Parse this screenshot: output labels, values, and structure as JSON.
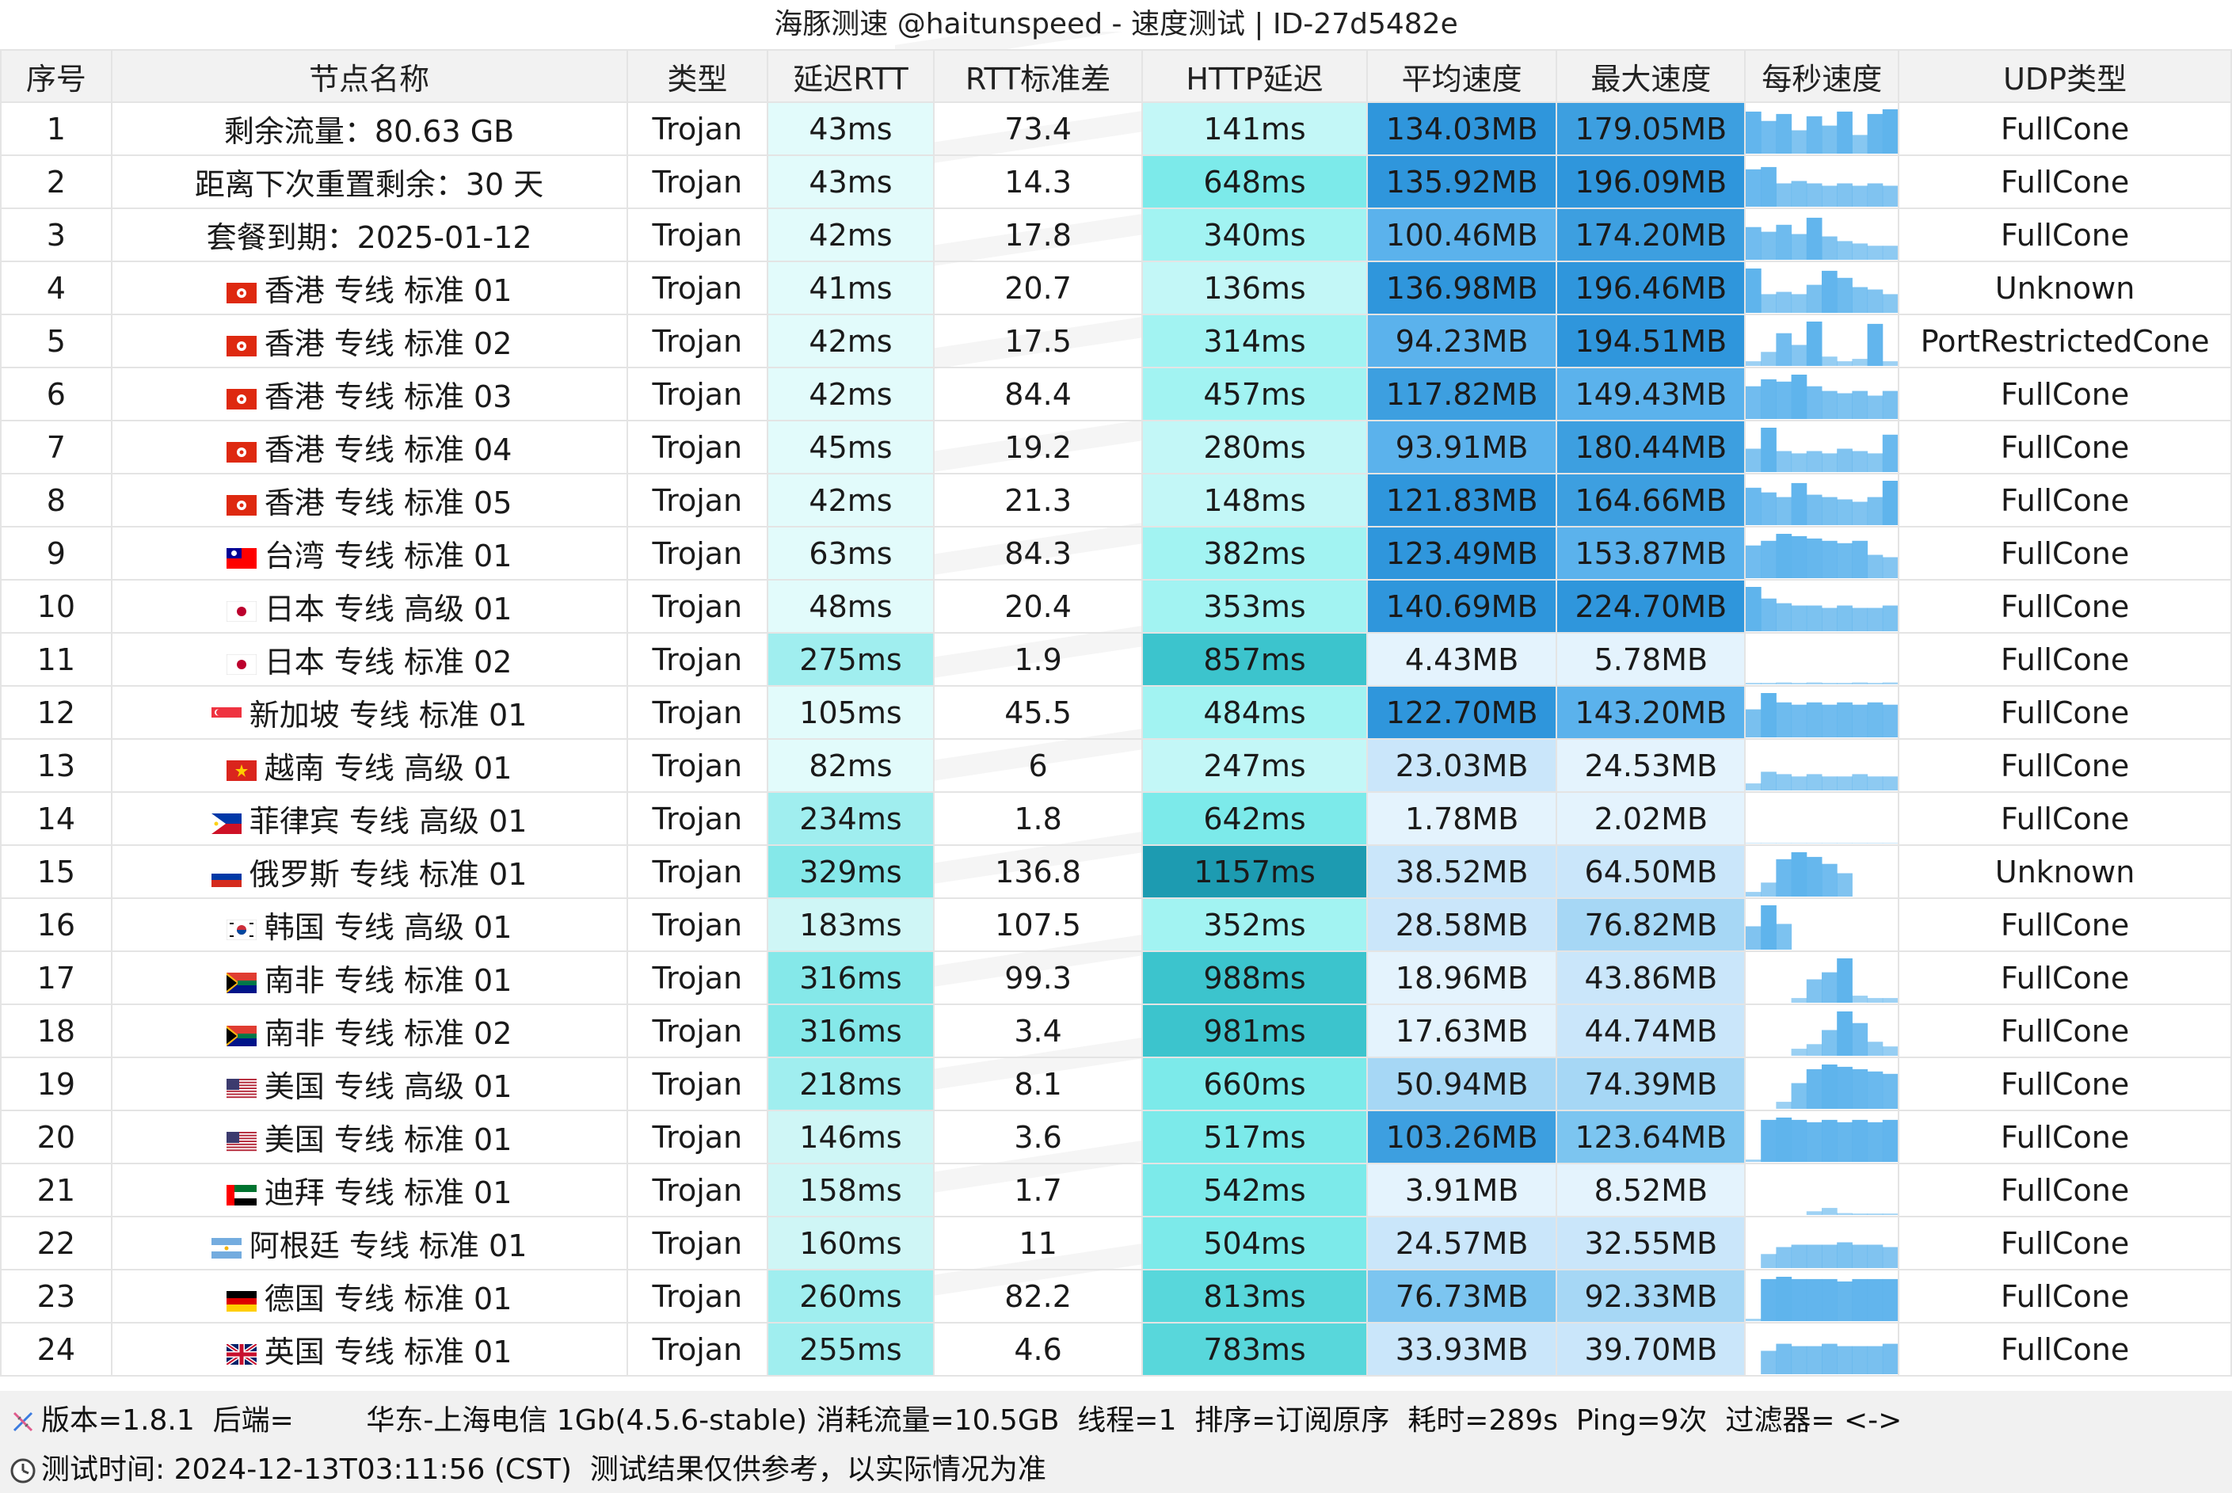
{
  "title": "海豚测速 @haitunspeed - 速度测试 | ID-27d5482e",
  "columns": [
    "序号",
    "节点名称",
    "类型",
    "延迟RTT",
    "RTT标准差",
    "HTTP延迟",
    "平均速度",
    "最大速度",
    "每秒速度",
    "UDP类型"
  ],
  "rows": [
    {
      "idx": "1",
      "flag": "",
      "name": "剩余流量：80.63 GB",
      "type": "Trojan",
      "rtt": "43ms",
      "std": "73.4",
      "http": "141ms",
      "avg": "134.03MB",
      "max": "179.05MB",
      "udp": "FullCone",
      "spark": [
        0.9,
        0.7,
        0.85,
        0.5,
        0.8,
        0.6,
        0.9,
        0.4,
        0.85,
        0.95
      ]
    },
    {
      "idx": "2",
      "flag": "",
      "name": "距离下次重置剩余：30 天",
      "type": "Trojan",
      "rtt": "43ms",
      "std": "14.3",
      "http": "648ms",
      "avg": "135.92MB",
      "max": "196.09MB",
      "udp": "FullCone",
      "spark": [
        0.8,
        0.85,
        0.5,
        0.55,
        0.5,
        0.45,
        0.5,
        0.45,
        0.5,
        0.45
      ]
    },
    {
      "idx": "3",
      "flag": "",
      "name": "套餐到期：2025-01-12",
      "type": "Trojan",
      "rtt": "42ms",
      "std": "17.8",
      "http": "340ms",
      "avg": "100.46MB",
      "max": "174.20MB",
      "udp": "FullCone",
      "spark": [
        0.7,
        0.6,
        0.75,
        0.55,
        0.9,
        0.5,
        0.4,
        0.35,
        0.3,
        0.3
      ]
    },
    {
      "idx": "4",
      "flag": "hk",
      "name": "香港 专线 标准 01",
      "type": "Trojan",
      "rtt": "41ms",
      "std": "20.7",
      "http": "136ms",
      "avg": "136.98MB",
      "max": "196.46MB",
      "udp": "Unknown",
      "spark": [
        0.95,
        0.4,
        0.45,
        0.4,
        0.6,
        0.9,
        0.75,
        0.55,
        0.5,
        0.4
      ]
    },
    {
      "idx": "5",
      "flag": "hk",
      "name": "香港 专线 标准 02",
      "type": "Trojan",
      "rtt": "42ms",
      "std": "17.5",
      "http": "314ms",
      "avg": "94.23MB",
      "max": "194.51MB",
      "udp": "PortRestrictedCone",
      "spark": [
        0.1,
        0.3,
        0.7,
        0.45,
        0.95,
        0.2,
        0.1,
        0.15,
        0.9,
        0.1
      ]
    },
    {
      "idx": "6",
      "flag": "hk",
      "name": "香港 专线 标准 03",
      "type": "Trojan",
      "rtt": "42ms",
      "std": "84.4",
      "http": "457ms",
      "avg": "117.82MB",
      "max": "149.43MB",
      "udp": "FullCone",
      "spark": [
        0.7,
        0.85,
        0.8,
        0.95,
        0.7,
        0.6,
        0.55,
        0.6,
        0.5,
        0.6
      ]
    },
    {
      "idx": "7",
      "flag": "hk",
      "name": "香港 专线 标准 04",
      "type": "Trojan",
      "rtt": "45ms",
      "std": "19.2",
      "http": "280ms",
      "avg": "93.91MB",
      "max": "180.44MB",
      "udp": "FullCone",
      "spark": [
        0.5,
        0.95,
        0.45,
        0.4,
        0.45,
        0.4,
        0.5,
        0.45,
        0.4,
        0.8
      ]
    },
    {
      "idx": "8",
      "flag": "hk",
      "name": "香港 专线 标准 05",
      "type": "Trojan",
      "rtt": "42ms",
      "std": "21.3",
      "http": "148ms",
      "avg": "121.83MB",
      "max": "164.66MB",
      "udp": "FullCone",
      "spark": [
        0.8,
        0.7,
        0.6,
        0.9,
        0.65,
        0.6,
        0.55,
        0.5,
        0.6,
        0.95
      ]
    },
    {
      "idx": "9",
      "flag": "tw",
      "name": "台湾 专线 标准 01",
      "type": "Trojan",
      "rtt": "63ms",
      "std": "84.3",
      "http": "382ms",
      "avg": "123.49MB",
      "max": "153.87MB",
      "udp": "FullCone",
      "spark": [
        0.7,
        0.8,
        0.95,
        0.9,
        0.85,
        0.8,
        0.75,
        0.8,
        0.5,
        0.45
      ]
    },
    {
      "idx": "10",
      "flag": "jp",
      "name": "日本 专线 高级 01",
      "type": "Trojan",
      "rtt": "48ms",
      "std": "20.4",
      "http": "353ms",
      "avg": "140.69MB",
      "max": "224.70MB",
      "udp": "FullCone",
      "spark": [
        0.95,
        0.7,
        0.6,
        0.55,
        0.55,
        0.5,
        0.55,
        0.5,
        0.5,
        0.55
      ]
    },
    {
      "idx": "11",
      "flag": "jp",
      "name": "日本 专线 标准 02",
      "type": "Trojan",
      "rtt": "275ms",
      "std": "1.9",
      "http": "857ms",
      "avg": "4.43MB",
      "max": "5.78MB",
      "udp": "FullCone",
      "spark": [
        0.03,
        0.03,
        0.04,
        0.03,
        0.04,
        0.03,
        0.03,
        0.04,
        0.03,
        0.04
      ]
    },
    {
      "idx": "12",
      "flag": "sg",
      "name": "新加坡 专线 标准 01",
      "type": "Trojan",
      "rtt": "105ms",
      "std": "45.5",
      "http": "484ms",
      "avg": "122.70MB",
      "max": "143.20MB",
      "udp": "FullCone",
      "spark": [
        0.6,
        0.95,
        0.75,
        0.7,
        0.75,
        0.7,
        0.75,
        0.7,
        0.75,
        0.7
      ]
    },
    {
      "idx": "13",
      "flag": "vn",
      "name": "越南 专线 高级 01",
      "type": "Trojan",
      "rtt": "82ms",
      "std": "6",
      "http": "247ms",
      "avg": "23.03MB",
      "max": "24.53MB",
      "udp": "FullCone",
      "spark": [
        0.15,
        0.4,
        0.35,
        0.3,
        0.35,
        0.3,
        0.3,
        0.35,
        0.3,
        0.3
      ]
    },
    {
      "idx": "14",
      "flag": "ph",
      "name": "菲律宾 专线 高级 01",
      "type": "Trojan",
      "rtt": "234ms",
      "std": "1.8",
      "http": "642ms",
      "avg": "1.78MB",
      "max": "2.02MB",
      "udp": "FullCone",
      "spark": [
        0.01,
        0.01,
        0.01,
        0.01,
        0.01,
        0.01,
        0.01,
        0.01,
        0.01,
        0.01
      ]
    },
    {
      "idx": "15",
      "flag": "ru",
      "name": "俄罗斯 专线 标准 01",
      "type": "Trojan",
      "rtt": "329ms",
      "std": "136.8",
      "http": "1157ms",
      "avg": "38.52MB",
      "max": "64.50MB",
      "udp": "Unknown",
      "spark": [
        0.1,
        0.3,
        0.8,
        0.95,
        0.85,
        0.7,
        0.5,
        0,
        0,
        0
      ]
    },
    {
      "idx": "16",
      "flag": "kr",
      "name": "韩国 专线 高级 01",
      "type": "Trojan",
      "rtt": "183ms",
      "std": "107.5",
      "http": "352ms",
      "avg": "28.58MB",
      "max": "76.82MB",
      "udp": "FullCone",
      "spark": [
        0.5,
        0.95,
        0.55,
        0,
        0,
        0,
        0,
        0,
        0,
        0
      ]
    },
    {
      "idx": "17",
      "flag": "za",
      "name": "南非 专线 标准 01",
      "type": "Trojan",
      "rtt": "316ms",
      "std": "99.3",
      "http": "988ms",
      "avg": "18.96MB",
      "max": "43.86MB",
      "udp": "FullCone",
      "spark": [
        0,
        0,
        0,
        0.1,
        0.5,
        0.65,
        0.95,
        0.15,
        0.1,
        0.1
      ]
    },
    {
      "idx": "18",
      "flag": "za",
      "name": "南非 专线 标准 02",
      "type": "Trojan",
      "rtt": "316ms",
      "std": "3.4",
      "http": "981ms",
      "avg": "17.63MB",
      "max": "44.74MB",
      "udp": "FullCone",
      "spark": [
        0,
        0,
        0,
        0.15,
        0.25,
        0.55,
        0.95,
        0.7,
        0.3,
        0.2
      ]
    },
    {
      "idx": "19",
      "flag": "us",
      "name": "美国 专线 高级 01",
      "type": "Trojan",
      "rtt": "218ms",
      "std": "8.1",
      "http": "660ms",
      "avg": "50.94MB",
      "max": "74.39MB",
      "udp": "FullCone",
      "spark": [
        0,
        0,
        0.15,
        0.55,
        0.85,
        0.95,
        0.9,
        0.85,
        0.8,
        0.75
      ]
    },
    {
      "idx": "20",
      "flag": "us",
      "name": "美国 专线 标准 01",
      "type": "Trojan",
      "rtt": "146ms",
      "std": "3.6",
      "http": "517ms",
      "avg": "103.26MB",
      "max": "123.64MB",
      "udp": "FullCone",
      "spark": [
        0.05,
        0.9,
        0.95,
        0.9,
        0.85,
        0.9,
        0.85,
        0.9,
        0.85,
        0.9
      ]
    },
    {
      "idx": "21",
      "flag": "ae",
      "name": "迪拜 专线 标准 01",
      "type": "Trojan",
      "rtt": "158ms",
      "std": "1.7",
      "http": "542ms",
      "avg": "3.91MB",
      "max": "8.52MB",
      "udp": "FullCone",
      "spark": [
        0,
        0,
        0,
        0,
        0.08,
        0.15,
        0.04,
        0.03,
        0.03,
        0.03
      ]
    },
    {
      "idx": "22",
      "flag": "ar",
      "name": "阿根廷 专线 标准 01",
      "type": "Trojan",
      "rtt": "160ms",
      "std": "11",
      "http": "504ms",
      "avg": "24.57MB",
      "max": "32.55MB",
      "udp": "FullCone",
      "spark": [
        0,
        0.3,
        0.45,
        0.5,
        0.5,
        0.5,
        0.55,
        0.5,
        0.5,
        0.45
      ]
    },
    {
      "idx": "23",
      "flag": "de",
      "name": "德国 专线 标准 01",
      "type": "Trojan",
      "rtt": "260ms",
      "std": "82.2",
      "http": "813ms",
      "avg": "76.73MB",
      "max": "92.33MB",
      "udp": "FullCone",
      "spark": [
        0.05,
        0.9,
        0.95,
        0.9,
        0.9,
        0.9,
        0.85,
        0.9,
        0.9,
        0.9
      ]
    },
    {
      "idx": "24",
      "flag": "gb",
      "name": "英国 专线 标准 01",
      "type": "Trojan",
      "rtt": "255ms",
      "std": "4.6",
      "http": "783ms",
      "avg": "33.93MB",
      "max": "39.70MB",
      "udp": "FullCone",
      "spark": [
        0,
        0.5,
        0.65,
        0.6,
        0.6,
        0.65,
        0.6,
        0.6,
        0.6,
        0.65
      ]
    }
  ],
  "footer": {
    "line1": "版本=1.8.1  后端=        华东-上海电信 1Gb(4.5.6-stable) 消耗流量=10.5GB  线程=1  排序=订阅原序  耗时=289s  Ping=9次  过滤器= <->",
    "line2": "测试时间: 2024-12-13T03:11:56 (CST)  测试结果仅供参考，以实际情况为准"
  },
  "colors": {
    "header_bg": "#f2f2f2",
    "footer_bg": "#f1f1f1",
    "spark_bar": "#5bb2ec",
    "rtt_scale": [
      "#e2fbfb",
      "#cff6f6",
      "#a0eeef",
      "#85e8e9"
    ],
    "http_scale": [
      "#c3f7f7",
      "#a2f3f2",
      "#7ceaea",
      "#58d7db",
      "#3cc4cd",
      "#1d9bb1"
    ],
    "speed_scale": [
      "#e4f3fd",
      "#cae6fa",
      "#a6d7f5",
      "#7cc5f0",
      "#5bb2ec",
      "#3d9fe0",
      "#2f96dc"
    ]
  }
}
